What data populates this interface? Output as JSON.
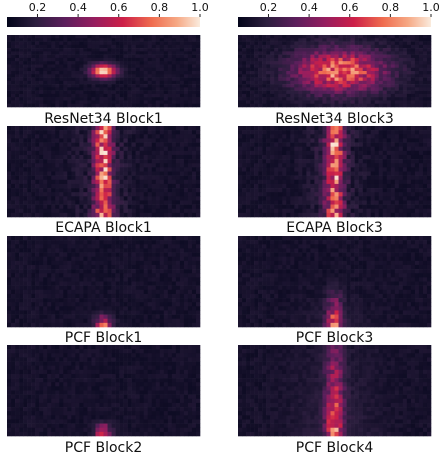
{
  "chart_data": {
    "type": "heatmap",
    "colormap": "rocket",
    "colorbar": {
      "ticks": [
        "0.2",
        "0.4",
        "0.6",
        "0.8",
        "1.0"
      ],
      "tick_values": [
        0.2,
        0.4,
        0.6,
        0.8,
        1.0
      ],
      "range": [
        0.05,
        1.0
      ],
      "placement": "top"
    },
    "panels": [
      {
        "label": "ResNet34 Block1",
        "pattern": "spot",
        "center": [
          0.5,
          0.5
        ],
        "intensity": 1.0
      },
      {
        "label": "ResNet34 Block3",
        "pattern": "blob",
        "center": [
          0.53,
          0.5
        ],
        "intensity": 0.85
      },
      {
        "label": "ECAPA Block1",
        "pattern": "column",
        "center": [
          0.5,
          0.5
        ],
        "intensity": 0.75
      },
      {
        "label": "ECAPA Block3",
        "pattern": "column",
        "center": [
          0.5,
          0.5
        ],
        "intensity": 0.7
      },
      {
        "label": "PCF Block1",
        "pattern": "bottom",
        "center": [
          0.5,
          0.95
        ],
        "intensity": 0.8
      },
      {
        "label": "PCF Block3",
        "pattern": "rising",
        "center": [
          0.5,
          0.9
        ],
        "intensity": 0.75
      },
      {
        "label": "PCF Block2",
        "pattern": "bottom",
        "center": [
          0.5,
          0.9
        ],
        "intensity": 0.7
      },
      {
        "label": "PCF Block4",
        "pattern": "full",
        "center": [
          0.5,
          0.8
        ],
        "intensity": 0.75
      }
    ]
  }
}
